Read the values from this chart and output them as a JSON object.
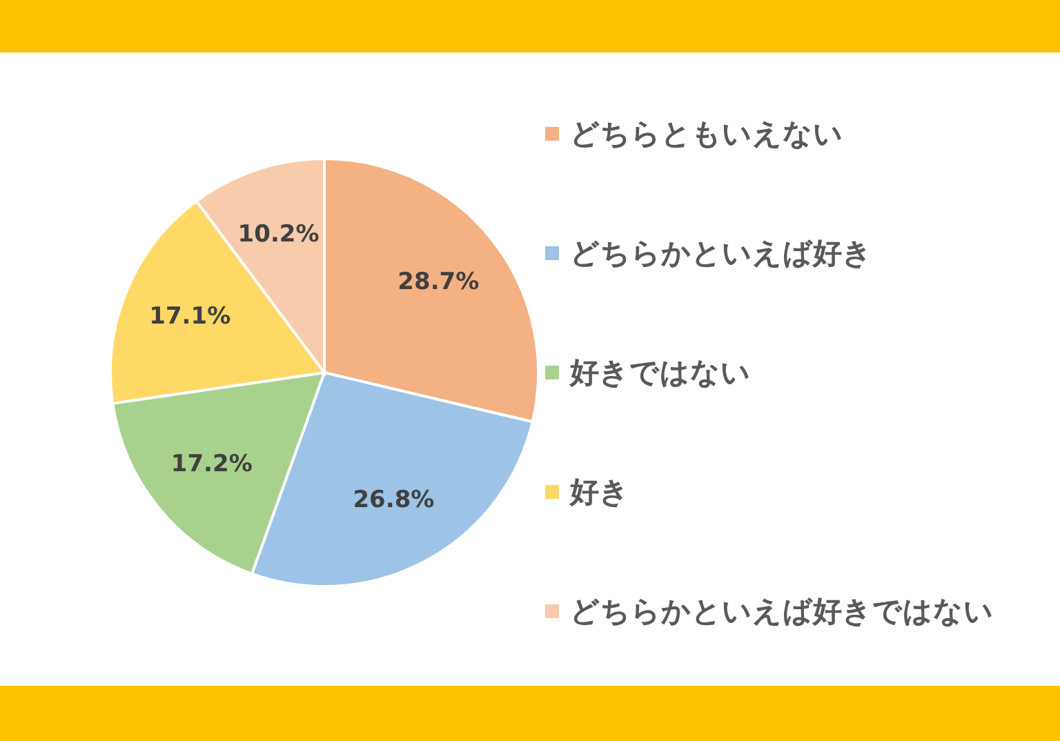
{
  "chart_data": {
    "type": "pie",
    "categories": [
      "どちらともいえない",
      "どちらかといえば好き",
      "好きではない",
      "好き",
      "どちらかといえば好きではない"
    ],
    "values": [
      28.7,
      26.8,
      17.2,
      17.1,
      10.2
    ],
    "colors": [
      "#f4b183",
      "#9dc3e6",
      "#a9d18e",
      "#ffd966",
      "#f8cbad"
    ],
    "value_labels": [
      "28.7%",
      "26.8%",
      "17.2%",
      "17.1%",
      "10.2%"
    ],
    "legend": "right"
  }
}
